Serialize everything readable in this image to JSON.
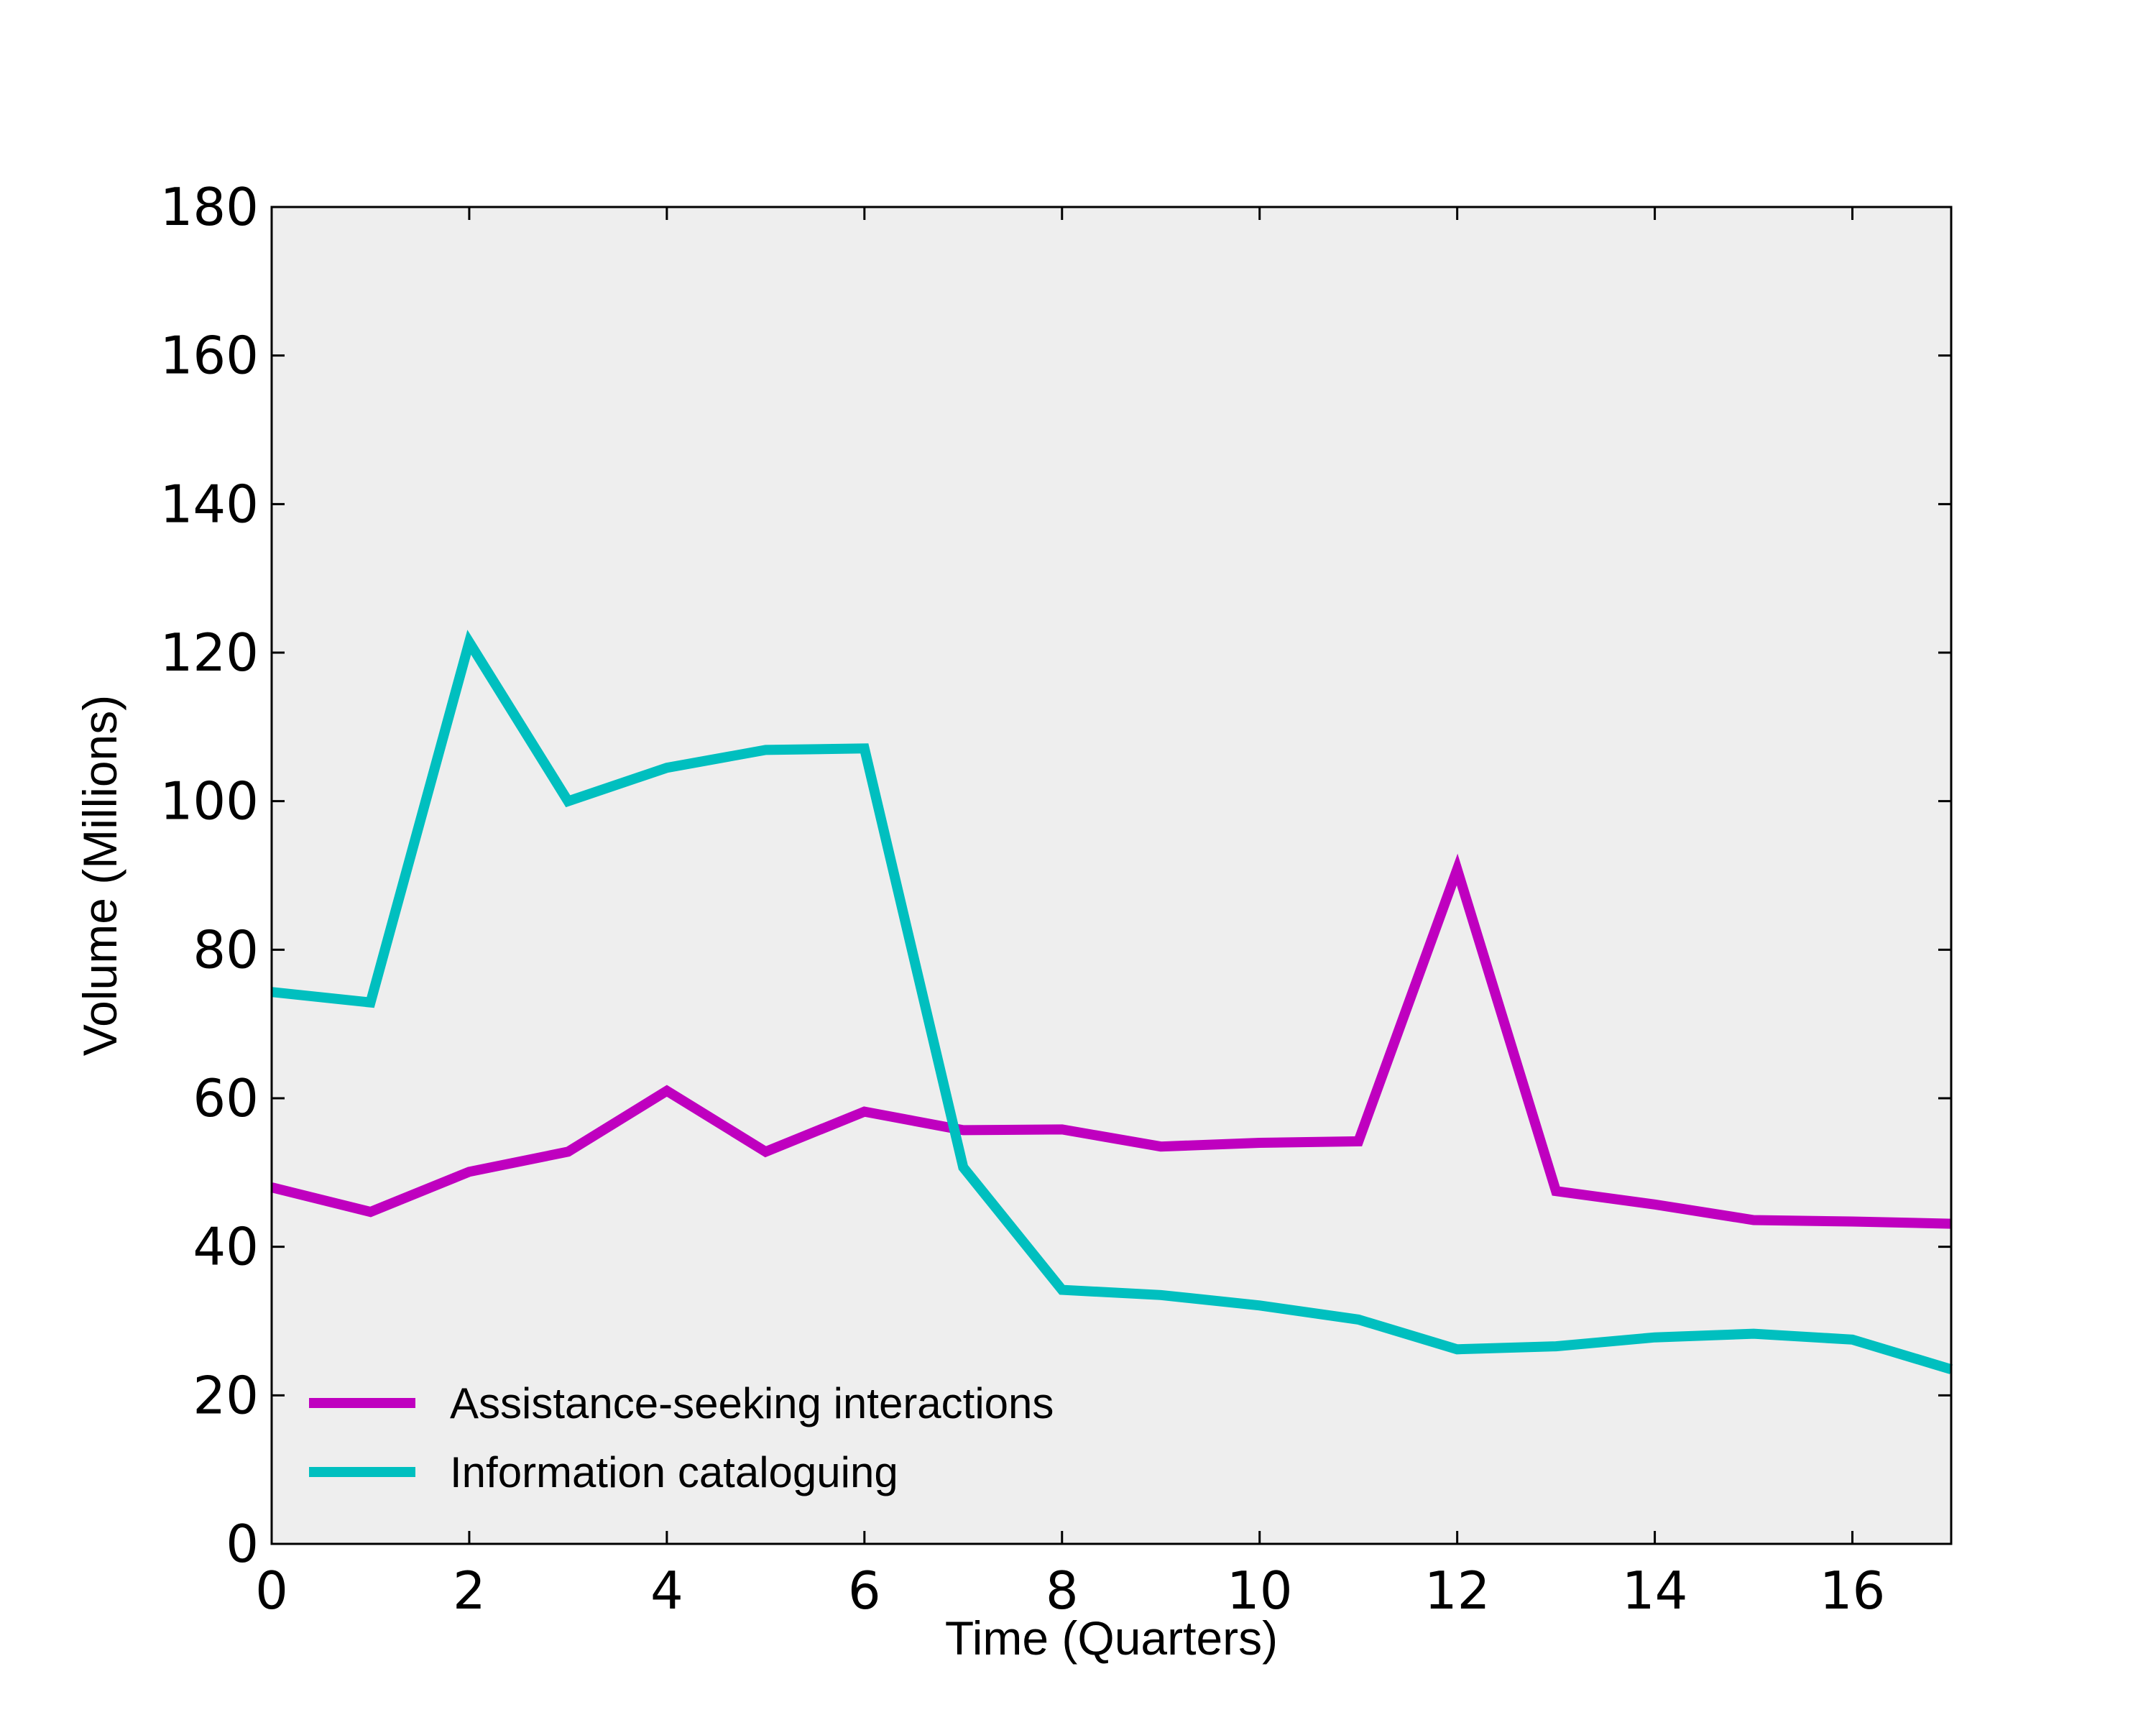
{
  "colors": {
    "plot_background": "#eeeeee",
    "axes": "#000000",
    "assistance": "#bf00bf",
    "information": "#00bfbf"
  },
  "chart_data": {
    "type": "line",
    "xlabel": "Time (Quarters)",
    "ylabel": "Volume (Millions)",
    "xlim": [
      0,
      17
    ],
    "ylim": [
      0,
      180
    ],
    "xticks": [
      0,
      2,
      4,
      6,
      8,
      10,
      12,
      14,
      16
    ],
    "yticks": [
      0,
      20,
      40,
      60,
      80,
      100,
      120,
      140,
      160,
      180
    ],
    "grid": false,
    "legend_position": "lower-left",
    "x": [
      0,
      1,
      2,
      3,
      4,
      5,
      6,
      7,
      8,
      9,
      10,
      11,
      12,
      13,
      14,
      15,
      16,
      17
    ],
    "series": [
      {
        "name": "Assistance-seeking interactions",
        "color": "#bf00bf",
        "values": [
          48.0,
          44.7,
          50.1,
          52.8,
          61.0,
          52.8,
          58.2,
          55.7,
          55.8,
          53.5,
          54.0,
          54.2,
          90.8,
          47.5,
          45.7,
          43.6,
          43.4,
          43.1
        ]
      },
      {
        "name": "Information cataloguing",
        "color": "#00bfbf",
        "values": [
          74.3,
          72.9,
          121.4,
          100.0,
          104.5,
          106.9,
          107.1,
          50.7,
          34.2,
          33.5,
          32.1,
          30.2,
          26.2,
          26.6,
          27.8,
          28.3,
          27.5,
          23.5
        ]
      }
    ]
  }
}
